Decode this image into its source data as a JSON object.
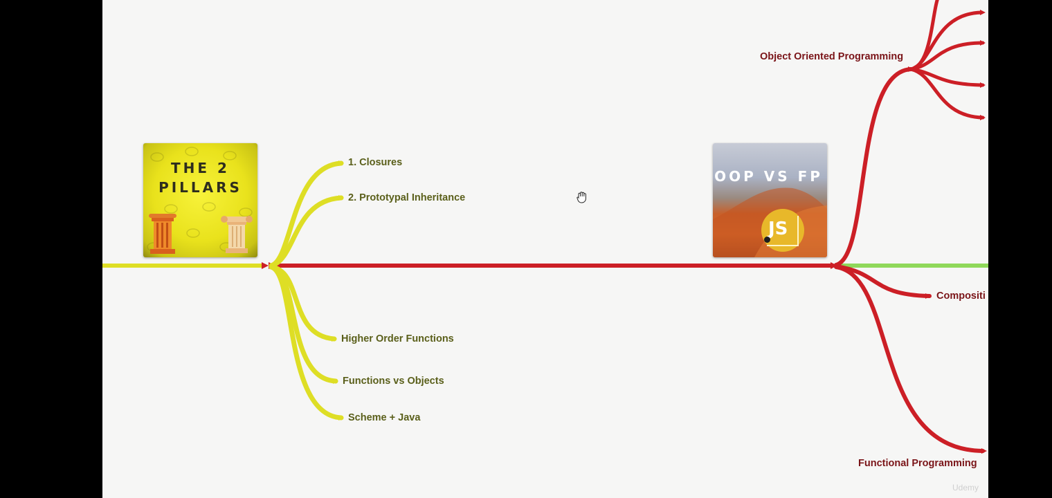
{
  "mindmap": {
    "yellow_branches": [
      {
        "label": "1. Closures"
      },
      {
        "label": "2. Prototypal Inheritance"
      },
      {
        "label": "Higher Order Functions"
      },
      {
        "label": "Functions vs Objects"
      },
      {
        "label": "Scheme + Java"
      }
    ],
    "red_branches": [
      {
        "label": "Object Oriented Programming"
      },
      {
        "label": "Compositi"
      },
      {
        "label": "Functional Programming"
      }
    ],
    "cards": {
      "pillars": {
        "line1": "THE 2",
        "line2": "PILLARS"
      },
      "oop_vs_fp": {
        "title": "OOP VS FP",
        "badge": "JS"
      }
    },
    "watermark": "Udemy"
  },
  "colors": {
    "yellow": "#dede25",
    "red": "#cc1f26",
    "green": "#8fd85a",
    "background": "#f6f6f5"
  },
  "cursor": {
    "icon": "hand-grab-icon"
  }
}
